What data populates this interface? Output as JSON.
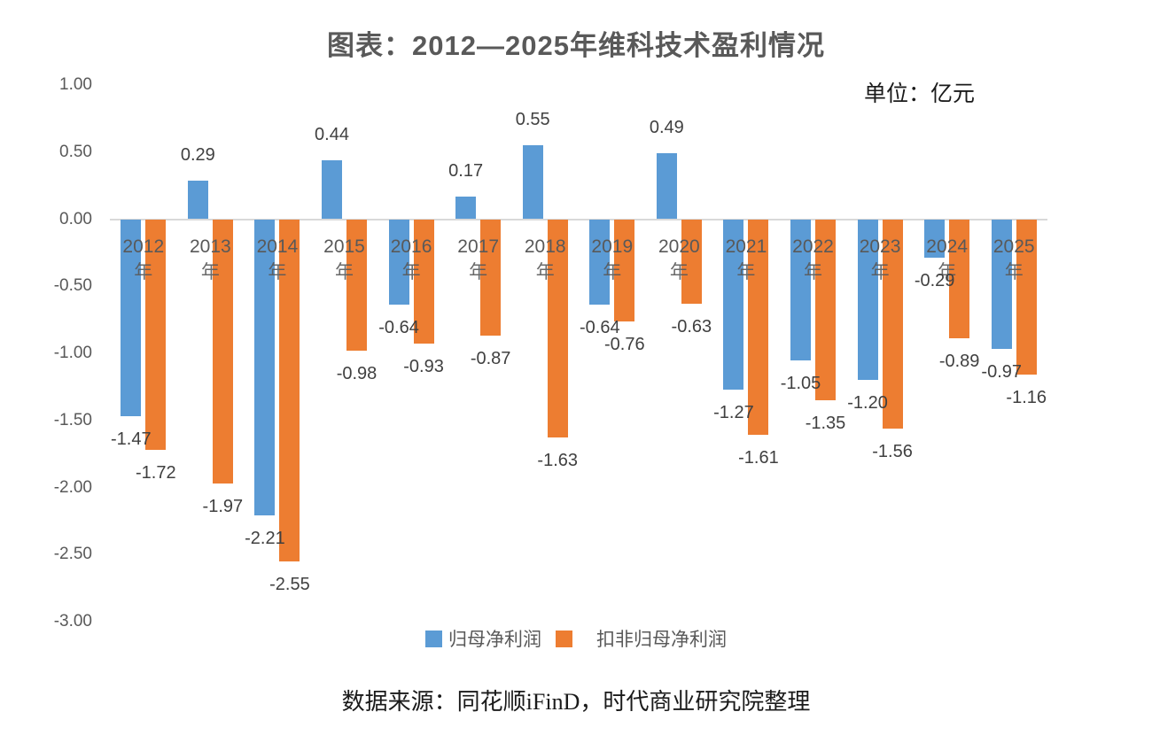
{
  "title": "图表：2012—2025年维科技术盈利情况",
  "unit_label": "单位：亿元",
  "source": "数据来源：同花顺iFinD，时代商业研究院整理",
  "chart_data": {
    "type": "bar",
    "title": "图表：2012—2025年维科技术盈利情况",
    "unit": "亿元",
    "categories": [
      "2012",
      "2013",
      "2014",
      "2015",
      "2016",
      "2017",
      "2018",
      "2019",
      "2020",
      "2021",
      "2022",
      "2023",
      "2024",
      "2025"
    ],
    "category_suffix": "年",
    "series": [
      {
        "name": "归母净利润",
        "color": "#5B9BD5",
        "values": [
          -1.47,
          0.29,
          -2.21,
          0.44,
          -0.64,
          0.17,
          0.55,
          -0.64,
          0.49,
          -1.27,
          -1.05,
          -1.2,
          -0.29,
          -0.97
        ]
      },
      {
        "name": "扣非归母净利润",
        "color": "#ED7D31",
        "values": [
          -1.72,
          -1.97,
          -2.55,
          -0.98,
          -0.93,
          -0.87,
          -1.63,
          -0.76,
          -0.63,
          -1.61,
          -1.35,
          -1.56,
          -0.89,
          -1.16
        ]
      }
    ],
    "xlabel": "",
    "ylabel": "",
    "ylim": [
      -3.0,
      1.0
    ],
    "ytick_step": 0.5,
    "yticks": [
      {
        "label": "1.00",
        "value": 1.0
      },
      {
        "label": "0.50",
        "value": 0.5
      },
      {
        "label": "0.00",
        "value": 0.0
      },
      {
        "label": "-0.50",
        "value": -0.5
      },
      {
        "label": "-1.00",
        "value": -1.0
      },
      {
        "label": "-1.50",
        "value": -1.5
      },
      {
        "label": "-2.00",
        "value": -2.0
      },
      {
        "label": "-2.50",
        "value": -2.5
      },
      {
        "label": "-3.00",
        "value": -3.0
      }
    ],
    "grid": "zero-line-only",
    "zero_line_color": "#D9D9D9",
    "data_labels": true,
    "data_label_color": "#404040",
    "legend_position": "bottom"
  }
}
